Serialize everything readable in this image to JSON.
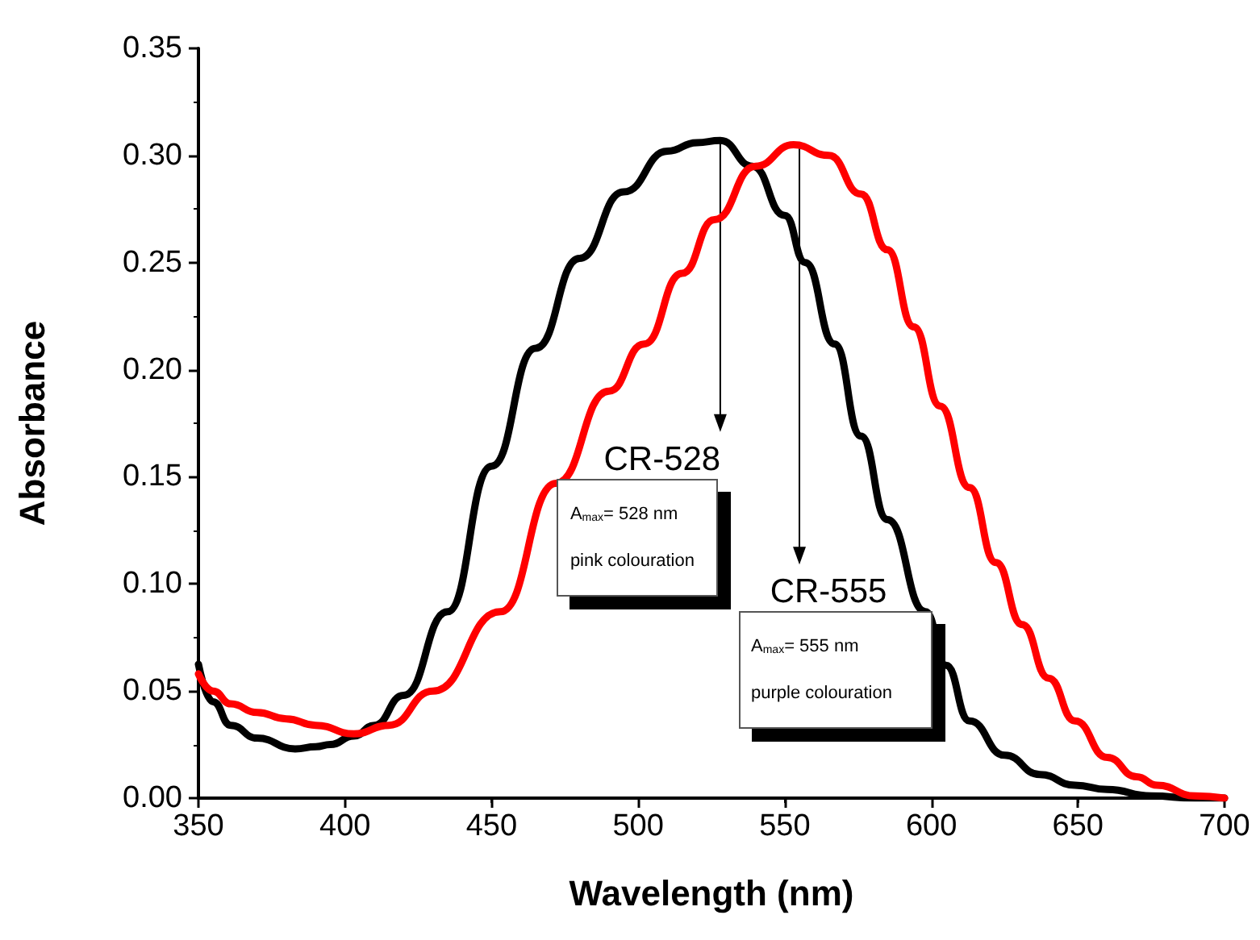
{
  "chart_data": {
    "type": "line",
    "xlabel": "Wavelength (nm)",
    "ylabel": "Absorbance",
    "xlim": [
      350,
      700
    ],
    "xticks": [
      350,
      400,
      450,
      500,
      550,
      600,
      650,
      700
    ],
    "ylim": [
      0,
      0.35
    ],
    "yticks": [
      {
        "value": 0,
        "label": "0.00"
      },
      {
        "value": 0.05,
        "label": "0.05"
      },
      {
        "value": 0.1,
        "label": "0.10"
      },
      {
        "value": 0.15,
        "label": "0.15"
      },
      {
        "value": 0.2,
        "label": "0.20"
      },
      {
        "value": 0.25,
        "label": "0.25"
      },
      {
        "value": 0.3,
        "label": "0.30"
      },
      {
        "value": 0.35,
        "label": "0.35"
      }
    ],
    "grid": false,
    "marker": "none",
    "line_style": "solid",
    "series": [
      {
        "color": "#000000",
        "x": [
          350,
          355,
          361,
          370,
          383,
          390,
          395,
          403,
          410,
          420,
          435,
          450,
          465,
          480,
          495,
          510,
          520,
          528,
          539,
          550,
          557,
          567,
          576,
          585,
          598,
          605,
          613,
          625,
          637,
          649,
          660,
          675,
          690,
          700
        ],
        "values": [
          0.0625,
          0.045,
          0.034,
          0.028,
          0.023,
          0.024,
          0.025,
          0.029,
          0.034,
          0.048,
          0.087,
          0.155,
          0.21,
          0.252,
          0.283,
          0.302,
          0.306,
          0.307,
          0.295,
          0.272,
          0.25,
          0.212,
          0.169,
          0.13,
          0.087,
          0.062,
          0.036,
          0.02,
          0.011,
          0.006,
          0.004,
          0.001,
          0.0,
          0.0
        ]
      },
      {
        "color": "#ff0000",
        "x": [
          350,
          355,
          361,
          370,
          380,
          390,
          403,
          415,
          430,
          453,
          472,
          490,
          502,
          515,
          526,
          540,
          553,
          565,
          576,
          585,
          594,
          603,
          613,
          622,
          631,
          640,
          649,
          660,
          670,
          677,
          690,
          700
        ],
        "values": [
          0.058,
          0.05,
          0.044,
          0.04,
          0.037,
          0.034,
          0.03,
          0.034,
          0.05,
          0.087,
          0.147,
          0.19,
          0.212,
          0.245,
          0.27,
          0.295,
          0.305,
          0.3,
          0.282,
          0.256,
          0.22,
          0.183,
          0.145,
          0.11,
          0.081,
          0.056,
          0.036,
          0.019,
          0.01,
          0.006,
          0.001,
          0.0
        ]
      }
    ],
    "annotations": [
      {
        "text": "CR-528",
        "x": 528,
        "y": 0.307
      },
      "A$_{max}$= 528 nm",
      "pink colouration",
      {
        "text": "CR-555",
        "x": 555,
        "y": 0.305
      },
      "A$_{max}$= 555 nm",
      "purple colouration"
    ]
  }
}
